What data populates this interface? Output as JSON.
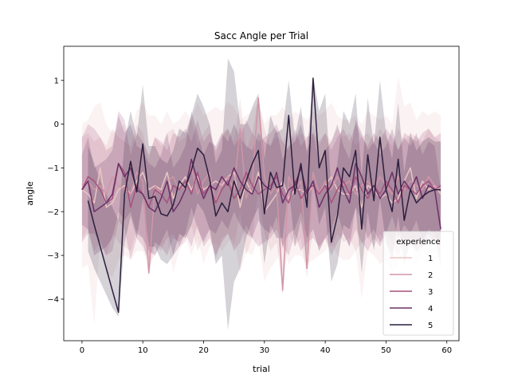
{
  "chart_data": {
    "type": "line",
    "title": "Sacc Angle per Trial",
    "xlabel": "trial",
    "ylabel": "angle",
    "xlim": [
      -3,
      62
    ],
    "ylim": [
      -4.95,
      1.78
    ],
    "xticks": [
      0,
      10,
      20,
      30,
      40,
      50,
      60
    ],
    "yticks": [
      -4,
      -3,
      -2,
      -1,
      0,
      1
    ],
    "ytick_labels": [
      "−4",
      "−3",
      "−2",
      "−1",
      "0",
      "1"
    ],
    "grid": false,
    "legend": {
      "title": "experience",
      "placement": "lower-right"
    },
    "x": [
      0,
      1,
      2,
      3,
      4,
      5,
      6,
      7,
      8,
      9,
      10,
      11,
      12,
      13,
      14,
      15,
      16,
      17,
      18,
      19,
      20,
      21,
      22,
      23,
      24,
      25,
      26,
      27,
      28,
      29,
      30,
      31,
      32,
      33,
      34,
      35,
      36,
      37,
      38,
      39,
      40,
      41,
      42,
      43,
      44,
      45,
      46,
      47,
      48,
      49,
      50,
      51,
      52,
      53,
      54,
      55,
      56,
      57,
      58,
      59
    ],
    "series": [
      {
        "name": "1",
        "color": "#ebc5c3",
        "band_opacity": 0.2,
        "values": [
          -1.5,
          -1.6,
          -1.8,
          -1.0,
          -1.9,
          -1.8,
          -1.5,
          -1.4,
          -1.6,
          -1.3,
          -1.1,
          -1.5,
          -1.4,
          -1.5,
          -1.1,
          -1.7,
          -1.4,
          -1.2,
          -1.5,
          -1.2,
          -1.5,
          -1.4,
          -1.3,
          -1.4,
          -1.2,
          -1.1,
          -1.9,
          -1.3,
          -1.6,
          -1.1,
          -2.0,
          -1.8,
          -1.6,
          -1.3,
          -1.7,
          -1.5,
          -1.5,
          -1.6,
          -1.4,
          -1.6,
          -1.4,
          -1.2,
          -1.5,
          -1.6,
          -1.6,
          -1.4,
          -1.9,
          -1.4,
          -1.5,
          -1.7,
          -1.6,
          -1.8,
          -1.7,
          -1.3,
          -1.0,
          -1.7,
          -1.3,
          -1.5,
          -1.4,
          -1.6
        ],
        "ci_low": [
          -3.3,
          -3.2,
          -4.6,
          -2.6,
          -3.4,
          -3.5,
          -3.1,
          -3.0,
          -3.1,
          -2.9,
          -2.9,
          -3.2,
          -3.0,
          -2.8,
          -2.6,
          -3.4,
          -2.9,
          -2.6,
          -3.0,
          -2.6,
          -3.2,
          -2.8,
          -2.7,
          -2.9,
          -2.7,
          -2.6,
          -3.4,
          -2.9,
          -3.0,
          -2.6,
          -3.6,
          -3.3,
          -3.1,
          -2.8,
          -3.2,
          -3.0,
          -3.0,
          -3.2,
          -3.1,
          -3.0,
          -2.9,
          -2.7,
          -3.0,
          -3.1,
          -3.1,
          -2.9,
          -4.0,
          -2.9,
          -3.0,
          -3.2,
          -3.1,
          -3.4,
          -3.2,
          -2.8,
          -2.6,
          -3.2,
          -2.9,
          -3.0,
          -2.9,
          -3.1
        ],
        "ci_high": [
          0.0,
          0.1,
          0.4,
          0.5,
          0.0,
          -0.2,
          -0.1,
          0.0,
          -0.2,
          0.3,
          0.5,
          0.2,
          0.2,
          0.0,
          0.3,
          0.0,
          0.1,
          0.3,
          0.1,
          0.5,
          0.2,
          0.3,
          0.4,
          0.3,
          0.5,
          0.4,
          0.1,
          0.2,
          0.3,
          0.5,
          0.0,
          0.2,
          0.2,
          0.4,
          0.1,
          0.3,
          0.2,
          0.1,
          0.3,
          0.2,
          0.3,
          0.5,
          0.2,
          0.1,
          0.1,
          0.2,
          0.0,
          0.3,
          0.2,
          0.1,
          0.2,
          0.0,
          1.1,
          0.4,
          0.5,
          0.1,
          0.3,
          0.2,
          0.3,
          0.2
        ]
      },
      {
        "name": "2",
        "color": "#d195a7",
        "band_opacity": 0.2,
        "values": [
          -1.4,
          -1.3,
          -1.5,
          -1.4,
          -1.6,
          -1.2,
          -1.4,
          -1.5,
          -1.6,
          -1.1,
          -1.3,
          -3.4,
          -1.4,
          -1.6,
          -1.3,
          -1.2,
          -1.5,
          -1.4,
          -1.0,
          -1.6,
          -1.3,
          -1.1,
          -1.8,
          -1.3,
          -1.2,
          -1.5,
          -0.1,
          -1.7,
          -1.3,
          0.6,
          -1.2,
          -1.6,
          -1.4,
          -3.8,
          -1.2,
          -1.5,
          -1.3,
          -3.3,
          -1.1,
          -1.6,
          -1.3,
          -1.5,
          -1.2,
          -1.4,
          -1.3,
          -1.6,
          -1.4,
          -1.3,
          -1.5,
          -1.2,
          -1.4,
          -1.6,
          -1.2,
          -1.5,
          -1.3,
          -1.4,
          -1.5,
          -1.2,
          -1.4,
          -1.5
        ],
        "ci_low": [
          -2.6,
          -2.4,
          -2.9,
          -2.7,
          -3.0,
          -2.5,
          -2.7,
          -2.8,
          -2.9,
          -2.4,
          -2.6,
          -3.5,
          -2.7,
          -2.9,
          -2.6,
          -2.5,
          -2.8,
          -2.7,
          -2.3,
          -2.9,
          -2.6,
          -2.4,
          -3.1,
          -2.6,
          -2.5,
          -2.8,
          -2.0,
          -3.0,
          -2.6,
          -1.5,
          -2.5,
          -2.9,
          -2.7,
          -3.9,
          -2.5,
          -2.8,
          -2.6,
          -3.5,
          -2.4,
          -2.9,
          -2.6,
          -2.8,
          -2.5,
          -2.7,
          -2.6,
          -2.9,
          -2.7,
          -2.6,
          -2.8,
          -2.5,
          -2.7,
          -2.9,
          -2.5,
          -2.8,
          -2.6,
          -2.7,
          -2.8,
          -2.5,
          -2.7,
          -2.8
        ],
        "ci_high": [
          -0.3,
          -0.2,
          -0.4,
          -0.3,
          -0.5,
          -0.1,
          -0.3,
          -0.4,
          -0.5,
          0.0,
          -0.2,
          -0.8,
          -0.3,
          -0.5,
          -0.2,
          -0.1,
          -0.4,
          -0.3,
          0.1,
          -0.5,
          -0.2,
          0.0,
          -0.7,
          -0.2,
          -0.1,
          -0.4,
          0.6,
          -0.6,
          -0.2,
          0.6,
          -0.1,
          -0.5,
          -0.3,
          -0.4,
          -0.1,
          -0.4,
          -0.2,
          -0.3,
          0.0,
          -0.5,
          -0.2,
          -0.4,
          -0.1,
          -0.3,
          -0.2,
          -0.5,
          -0.3,
          -0.2,
          -0.4,
          -0.1,
          -0.3,
          -0.5,
          -0.1,
          -0.4,
          -0.2,
          -0.3,
          -0.4,
          -0.1,
          -0.3,
          -0.4
        ]
      },
      {
        "name": "3",
        "color": "#a6527d",
        "band_opacity": 0.2,
        "values": [
          -1.5,
          -1.2,
          -1.3,
          -1.5,
          -1.8,
          -1.7,
          -0.9,
          -1.1,
          -1.9,
          -1.4,
          -1.6,
          -1.9,
          -1.5,
          -1.6,
          -1.8,
          -1.4,
          -1.5,
          -1.3,
          -1.6,
          -1.1,
          -1.6,
          -1.4,
          -1.8,
          -1.5,
          -1.3,
          -1.7,
          -1.5,
          -1.1,
          -1.4,
          -1.6,
          -1.5,
          -1.4,
          -1.2,
          -1.6,
          -1.8,
          -1.3,
          -1.7,
          -1.5,
          -1.4,
          -1.6,
          -1.4,
          -1.8,
          -1.5,
          -1.3,
          -1.6,
          -1.2,
          -1.5,
          -1.7,
          -1.4,
          -1.6,
          -1.3,
          -1.5,
          -1.8,
          -1.4,
          -1.5,
          -1.6,
          -1.4,
          -1.3,
          -1.5,
          -1.4
        ],
        "ci_low": [
          -2.7,
          -2.5,
          -2.5,
          -2.7,
          -3.0,
          -2.9,
          -2.2,
          -2.4,
          -3.1,
          -2.6,
          -2.8,
          -3.1,
          -2.7,
          -2.8,
          -3.0,
          -2.6,
          -2.7,
          -2.5,
          -2.8,
          -2.3,
          -2.8,
          -2.6,
          -3.0,
          -2.7,
          -2.5,
          -2.9,
          -2.7,
          -2.3,
          -2.6,
          -2.8,
          -2.7,
          -2.6,
          -2.4,
          -2.8,
          -3.0,
          -2.5,
          -2.9,
          -2.7,
          -2.6,
          -2.8,
          -2.6,
          -3.0,
          -2.7,
          -2.5,
          -2.8,
          -2.4,
          -2.7,
          -2.9,
          -2.6,
          -2.8,
          -2.5,
          -2.7,
          -3.0,
          -2.6,
          -2.7,
          -2.8,
          -2.6,
          -2.5,
          -2.7,
          -2.6
        ],
        "ci_high": [
          -0.3,
          0.0,
          -0.1,
          -0.3,
          -0.6,
          -0.5,
          0.3,
          0.1,
          -0.7,
          -0.2,
          -0.4,
          -0.7,
          -0.3,
          -0.4,
          -0.6,
          -0.2,
          -0.3,
          -0.1,
          -0.4,
          0.1,
          -0.4,
          -0.2,
          -0.6,
          -0.3,
          -0.1,
          -0.5,
          -0.3,
          0.1,
          -0.2,
          -0.4,
          -0.3,
          -0.2,
          0.0,
          -0.4,
          -0.6,
          -0.1,
          -0.5,
          -0.3,
          -0.2,
          -0.4,
          -0.2,
          -0.6,
          -0.3,
          -0.1,
          -0.4,
          0.0,
          -0.3,
          -0.5,
          -0.2,
          -0.4,
          -0.1,
          -0.3,
          -0.6,
          -0.2,
          -0.3,
          -0.4,
          -0.2,
          -0.1,
          -0.3,
          -0.2
        ]
      },
      {
        "name": "4",
        "color": "#6b3066",
        "band_opacity": 0.2,
        "values": [
          -1.5,
          -1.3,
          -2.0,
          -1.9,
          -1.8,
          -1.6,
          -0.9,
          -1.2,
          -1.0,
          -1.5,
          -1.6,
          -1.9,
          -2.0,
          -1.7,
          -1.3,
          -2.0,
          -1.8,
          -1.5,
          -0.8,
          -1.3,
          -1.7,
          -1.4,
          -1.5,
          -1.2,
          -1.4,
          -1.0,
          -1.3,
          -1.5,
          -1.6,
          -1.2,
          -1.4,
          -1.5,
          -1.1,
          -1.8,
          -1.5,
          -1.4,
          -1.0,
          -1.6,
          -1.3,
          -1.9,
          -1.6,
          -1.4,
          -1.0,
          -1.5,
          -1.8,
          -0.9,
          -1.2,
          -1.6,
          -1.4,
          -1.7,
          -1.5,
          -1.1,
          -1.6,
          -1.3,
          -1.5,
          -1.2,
          -1.7,
          -1.4,
          -1.5,
          -2.4
        ],
        "ci_low": [
          -2.3,
          -2.4,
          -3.0,
          -2.9,
          -2.8,
          -2.6,
          -2.0,
          -2.2,
          -2.0,
          -2.5,
          -2.6,
          -2.9,
          -3.0,
          -2.7,
          -2.4,
          -3.0,
          -2.8,
          -2.5,
          -1.9,
          -2.4,
          -2.7,
          -2.4,
          -2.5,
          -2.2,
          -2.4,
          -2.0,
          -2.3,
          -2.5,
          -2.6,
          -2.2,
          -2.4,
          -2.5,
          -2.1,
          -2.8,
          -2.5,
          -2.4,
          -2.0,
          -2.6,
          -2.4,
          -2.9,
          -2.6,
          -2.4,
          -2.0,
          -2.5,
          -2.8,
          -1.9,
          -2.2,
          -2.6,
          -2.4,
          -2.7,
          -2.5,
          -2.1,
          -2.6,
          -2.3,
          -2.5,
          -2.2,
          -2.7,
          -2.4,
          -2.5,
          -3.3
        ],
        "ci_high": [
          -0.7,
          -0.3,
          -1.0,
          -0.9,
          -0.8,
          -0.6,
          0.2,
          -0.2,
          0.0,
          -0.5,
          -0.6,
          -0.9,
          -1.0,
          -0.7,
          -0.2,
          -1.0,
          -0.8,
          -0.5,
          0.3,
          -0.2,
          -0.7,
          -0.4,
          -0.5,
          -0.2,
          -0.4,
          0.0,
          -0.3,
          -0.5,
          -0.6,
          -0.2,
          -0.4,
          -0.5,
          -0.1,
          -0.8,
          -0.5,
          -0.4,
          0.0,
          -0.6,
          -0.2,
          -0.9,
          -0.6,
          -0.4,
          0.0,
          -0.5,
          -0.8,
          0.1,
          -0.2,
          -0.6,
          -0.4,
          -0.7,
          -0.5,
          -0.1,
          -0.6,
          -0.3,
          -0.5,
          -0.2,
          -0.7,
          -0.4,
          -0.5,
          -1.5
        ]
      },
      {
        "name": "5",
        "color": "#2c1e3d",
        "band_opacity": 0.2,
        "values": [
          null,
          -1.75,
          -2.3,
          -2.8,
          -3.3,
          -3.8,
          -4.3,
          -1.6,
          -0.85,
          -1.55,
          -0.45,
          -1.7,
          -1.65,
          -2.05,
          -2.1,
          -1.85,
          -1.3,
          -1.45,
          -1.05,
          -0.55,
          -0.7,
          -1.25,
          -2.1,
          -1.8,
          -2.0,
          -1.3,
          -1.7,
          -1.3,
          -0.9,
          -0.6,
          -2.05,
          -1.1,
          -1.45,
          -1.4,
          0.2,
          -1.6,
          -0.9,
          -1.9,
          1.05,
          -1.0,
          -0.6,
          -2.7,
          -2.1,
          -1.0,
          -1.2,
          -0.6,
          -2.4,
          -0.7,
          -1.75,
          -0.3,
          -1.5,
          -2.0,
          -0.8,
          -2.2,
          -1.5,
          -1.8,
          -1.65,
          -1.55,
          -1.5,
          -1.5
        ],
        "ci_low": [
          null,
          -2.9,
          -3.3,
          -3.6,
          -3.9,
          -4.2,
          -4.4,
          -2.7,
          -2.1,
          -2.6,
          -1.7,
          -2.8,
          -2.8,
          -3.1,
          -3.2,
          -3.0,
          -2.5,
          -2.6,
          -2.3,
          -1.8,
          -2.0,
          -2.4,
          -3.2,
          -3.0,
          -4.7,
          -3.6,
          -3.3,
          -2.6,
          -2.2,
          -1.9,
          -3.2,
          -2.3,
          -2.6,
          -2.6,
          -1.4,
          -2.8,
          -2.2,
          -3.0,
          -1.3,
          -2.3,
          -1.9,
          -3.6,
          -3.2,
          -2.3,
          -2.4,
          -1.9,
          -3.4,
          -2.0,
          -2.9,
          -1.7,
          -2.7,
          -3.1,
          -2.1,
          -3.2,
          -2.7,
          -2.9,
          -2.8,
          -2.7,
          -2.6,
          -2.7
        ],
        "ci_high": [
          null,
          -0.5,
          -0.9,
          -1.3,
          -1.6,
          -1.9,
          -2.2,
          -0.4,
          0.3,
          -0.3,
          0.9,
          -0.5,
          -0.5,
          -0.8,
          -0.9,
          -0.6,
          -0.1,
          -0.2,
          0.2,
          0.7,
          0.4,
          0.0,
          -0.9,
          -0.6,
          1.5,
          1.2,
          0.0,
          0.0,
          0.4,
          0.7,
          -0.8,
          0.2,
          -0.2,
          -0.1,
          1.0,
          -0.3,
          0.4,
          -0.7,
          1.1,
          0.3,
          0.7,
          -1.5,
          -0.9,
          0.3,
          0.0,
          0.7,
          -1.2,
          0.6,
          -0.5,
          1.0,
          -0.2,
          -0.8,
          0.5,
          -1.1,
          -0.2,
          -0.6,
          -0.4,
          -0.3,
          -0.4,
          -0.4
        ]
      }
    ]
  }
}
